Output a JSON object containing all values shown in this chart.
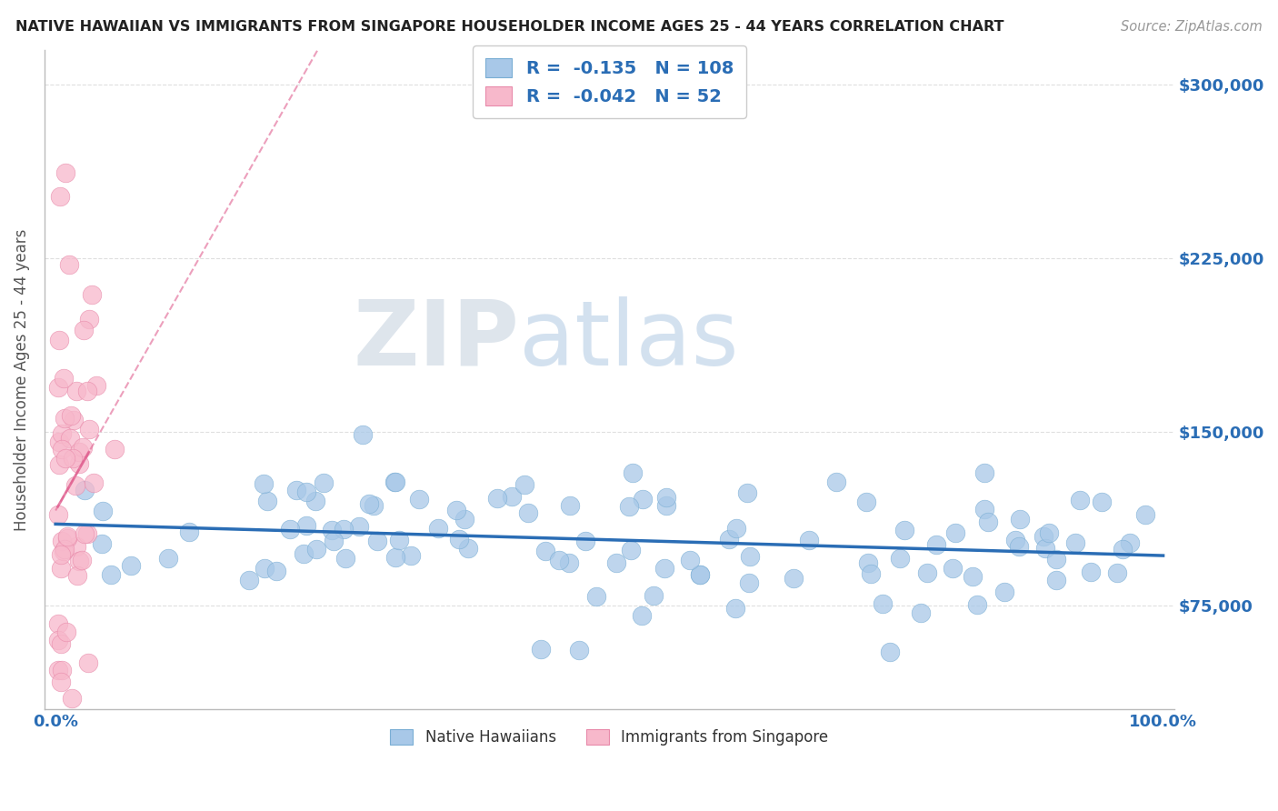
{
  "title": "NATIVE HAWAIIAN VS IMMIGRANTS FROM SINGAPORE HOUSEHOLDER INCOME AGES 25 - 44 YEARS CORRELATION CHART",
  "source": "Source: ZipAtlas.com",
  "ylabel": "Householder Income Ages 25 - 44 years",
  "xlabel": "",
  "xlim": [
    -1.0,
    101.0
  ],
  "ylim": [
    30000,
    315000
  ],
  "yticks": [
    75000,
    150000,
    225000,
    300000
  ],
  "ytick_labels": [
    "$75,000",
    "$150,000",
    "$225,000",
    "$300,000"
  ],
  "blue_color": "#a8c8e8",
  "blue_edge_color": "#7aaed4",
  "blue_line_color": "#2a6db5",
  "pink_color": "#f7b8cb",
  "pink_edge_color": "#e88aaa",
  "pink_line_color": "#e06090",
  "R_blue": -0.135,
  "N_blue": 108,
  "R_pink": -0.042,
  "N_pink": 52,
  "legend_label_blue": "Native Hawaiians",
  "legend_label_pink": "Immigrants from Singapore",
  "watermark_zip": "ZIP",
  "watermark_atlas": "atlas",
  "watermark_zip_color": "#c8d4e0",
  "watermark_atlas_color": "#a8c4e0",
  "background_color": "#ffffff",
  "grid_color": "#d8d8d8",
  "title_color": "#222222",
  "axis_label_color": "#555555",
  "tick_label_color": "#2a6db5",
  "legend_text_color": "#2a6db5"
}
